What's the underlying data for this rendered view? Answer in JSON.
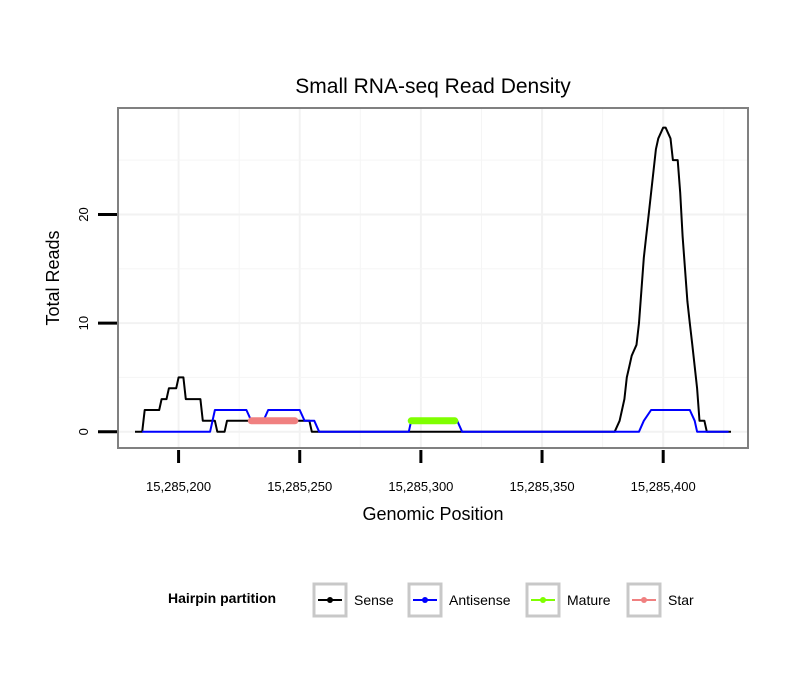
{
  "chart_data": {
    "type": "line",
    "title": "Small RNA-seq Read Density",
    "xlabel": "Genomic Position",
    "ylabel": "Total Reads",
    "xlim": [
      15285175,
      15285435
    ],
    "ylim": [
      -1.5,
      29.8
    ],
    "x_ticks": [
      15285200,
      15285250,
      15285300,
      15285350,
      15285400
    ],
    "x_tick_labels": [
      "15,285,200",
      "15,285,250",
      "15,285,300",
      "15,285,350",
      "15,285,400"
    ],
    "y_ticks": [
      0,
      10,
      20
    ],
    "y_tick_labels": [
      "0",
      "10",
      "20"
    ],
    "grid": true,
    "legend": {
      "title": "Hairpin partition",
      "position": "bottom",
      "entries": [
        "Sense",
        "Antisense",
        "Mature",
        "Star"
      ]
    },
    "series": [
      {
        "name": "Sense",
        "color": "#000000",
        "width": 2,
        "points": [
          [
            15285182,
            0
          ],
          [
            15285185,
            0
          ],
          [
            15285186,
            2
          ],
          [
            15285192,
            2
          ],
          [
            15285193,
            3
          ],
          [
            15285195,
            3
          ],
          [
            15285196,
            4
          ],
          [
            15285199,
            4
          ],
          [
            15285200,
            5
          ],
          [
            15285202,
            5
          ],
          [
            15285203,
            3
          ],
          [
            15285209,
            3
          ],
          [
            15285210,
            1
          ],
          [
            15285215,
            1
          ],
          [
            15285216,
            0
          ],
          [
            15285219,
            0
          ],
          [
            15285220,
            1
          ],
          [
            15285254,
            1
          ],
          [
            15285255,
            0
          ],
          [
            15285380,
            0
          ],
          [
            15285382,
            1
          ],
          [
            15285383,
            2
          ],
          [
            15285384,
            3
          ],
          [
            15285385,
            5
          ],
          [
            15285386,
            6
          ],
          [
            15285387,
            7
          ],
          [
            15285389,
            8
          ],
          [
            15285390,
            10
          ],
          [
            15285391,
            13
          ],
          [
            15285392,
            16
          ],
          [
            15285393,
            18
          ],
          [
            15285394,
            20
          ],
          [
            15285395,
            22
          ],
          [
            15285396,
            24
          ],
          [
            15285397,
            26
          ],
          [
            15285398,
            27
          ],
          [
            15285400,
            28
          ],
          [
            15285401,
            28
          ],
          [
            15285403,
            27
          ],
          [
            15285404,
            25
          ],
          [
            15285406,
            25
          ],
          [
            15285407,
            22
          ],
          [
            15285408,
            18
          ],
          [
            15285409,
            15
          ],
          [
            15285410,
            12
          ],
          [
            15285411,
            10
          ],
          [
            15285412,
            8
          ],
          [
            15285413,
            6
          ],
          [
            15285414,
            4
          ],
          [
            15285415,
            1
          ],
          [
            15285417,
            1
          ],
          [
            15285418,
            0
          ],
          [
            15285428,
            0
          ]
        ]
      },
      {
        "name": "Antisense",
        "color": "#0000ff",
        "width": 2,
        "points": [
          [
            15285185,
            0
          ],
          [
            15285213,
            0
          ],
          [
            15285215,
            2
          ],
          [
            15285228,
            2
          ],
          [
            15285230,
            1
          ],
          [
            15285235,
            1
          ],
          [
            15285237,
            2
          ],
          [
            15285250,
            2
          ],
          [
            15285252,
            1
          ],
          [
            15285256,
            1
          ],
          [
            15285258,
            0
          ],
          [
            15285295,
            0
          ],
          [
            15285296,
            1
          ],
          [
            15285315,
            1
          ],
          [
            15285317,
            0
          ],
          [
            15285390,
            0
          ],
          [
            15285392,
            1
          ],
          [
            15285395,
            2
          ],
          [
            15285411,
            2
          ],
          [
            15285413,
            1
          ],
          [
            15285414,
            0
          ],
          [
            15285427,
            0
          ]
        ]
      },
      {
        "name": "Mature",
        "color": "#7fff00",
        "width": 7,
        "points": [
          [
            15285296,
            1
          ],
          [
            15285314,
            1
          ]
        ]
      },
      {
        "name": "Star",
        "color": "#f08080",
        "width": 7,
        "points": [
          [
            15285230,
            1
          ],
          [
            15285248,
            1
          ]
        ]
      }
    ]
  }
}
